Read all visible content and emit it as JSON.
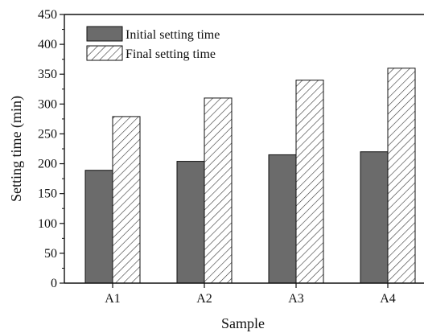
{
  "chart_data": {
    "type": "bar",
    "title": "",
    "xlabel": "Sample",
    "ylabel": "Setting time (min)",
    "categories": [
      "A1",
      "A2",
      "A3",
      "A4"
    ],
    "ylim": [
      0,
      450
    ],
    "yticks": [
      0,
      50,
      100,
      150,
      200,
      250,
      300,
      350,
      400,
      450
    ],
    "legend_position": "top-left",
    "grid": false,
    "series": [
      {
        "name": "Initial setting time",
        "values": [
          189,
          204,
          215,
          220
        ],
        "color": "#6b6b6b",
        "pattern": "solid"
      },
      {
        "name": "Final setting time",
        "values": [
          279,
          310,
          340,
          360
        ],
        "color": "#ffffff",
        "pattern": "diagonal-hatch"
      }
    ]
  }
}
